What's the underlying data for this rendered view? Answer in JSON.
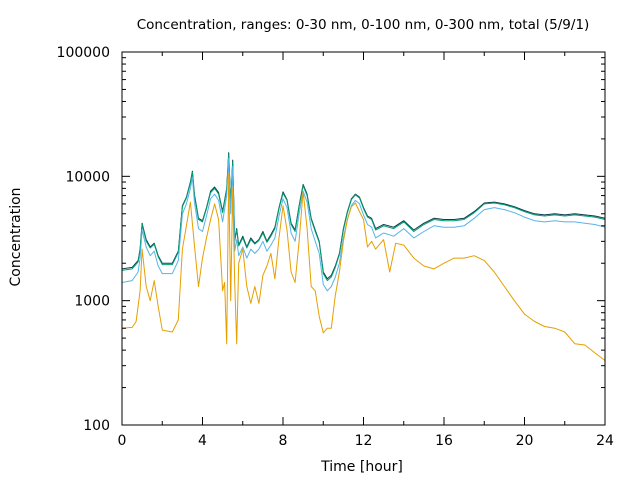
{
  "chart_data": {
    "type": "line",
    "title": "Concentration, ranges: 0-30 nm, 0-100 nm, 0-300 nm, total (5/9/1)",
    "xlabel": "Time [hour]",
    "ylabel": "Concentration",
    "xlim": [
      0,
      24
    ],
    "ylim": [
      100,
      100000
    ],
    "yscale": "log",
    "x_ticks": [
      "0",
      "4",
      "8",
      "12",
      "16",
      "20",
      "24"
    ],
    "y_ticks": [
      "100",
      "1000",
      "10000",
      "100000"
    ],
    "grid": false,
    "legend": "none",
    "series": [
      {
        "color": "#0b3d4a",
        "x": [
          0,
          0.5,
          0.8,
          0.9,
          1.0,
          1.2,
          1.4,
          1.6,
          1.8,
          2.0,
          2.5,
          2.8,
          3.0,
          3.2,
          3.4,
          3.5,
          3.6,
          3.8,
          4.0,
          4.2,
          4.4,
          4.6,
          4.8,
          5.0,
          5.2,
          5.3,
          5.4,
          5.5,
          5.6,
          5.7,
          5.8,
          6.0,
          6.2,
          6.4,
          6.6,
          6.8,
          7.0,
          7.2,
          7.4,
          7.6,
          7.8,
          8.0,
          8.2,
          8.4,
          8.6,
          8.8,
          9.0,
          9.2,
          9.4,
          9.6,
          9.8,
          10.0,
          10.2,
          10.4,
          10.6,
          10.8,
          11.0,
          11.2,
          11.4,
          11.6,
          11.8,
          12.0,
          12.2,
          12.4,
          12.6,
          13.0,
          13.5,
          14.0,
          14.5,
          15.0,
          15.5,
          16.0,
          16.5,
          17.0,
          17.5,
          18.0,
          18.5,
          19.0,
          19.5,
          20.0,
          20.5,
          21.0,
          21.5,
          22.0,
          22.5,
          23.0,
          23.5,
          24.0
        ],
        "y": [
          1800,
          1850,
          2100,
          2600,
          4200,
          3100,
          2700,
          2900,
          2300,
          2000,
          2000,
          2500,
          5800,
          6800,
          9000,
          11000,
          7200,
          4600,
          4400,
          5600,
          7600,
          8200,
          7400,
          5200,
          8000,
          15500,
          6000,
          13500,
          3100,
          3800,
          2800,
          3300,
          2700,
          3200,
          2900,
          3100,
          3600,
          3000,
          3400,
          3900,
          5600,
          7500,
          6500,
          4200,
          3700,
          5800,
          8600,
          7200,
          4600,
          3700,
          3000,
          1700,
          1500,
          1600,
          1900,
          2400,
          3800,
          5200,
          6600,
          7200,
          6800,
          5600,
          4800,
          4600,
          3800,
          4100,
          3900,
          4400,
          3700,
          4200,
          4600,
          4500,
          4500,
          4600,
          5200,
          6100,
          6200,
          6000,
          5700,
          5300,
          5000,
          4900,
          5000,
          4900,
          5000,
          4900,
          4800,
          4600
        ]
      },
      {
        "color": "#009e73",
        "x": [
          0,
          0.5,
          0.8,
          0.9,
          1.0,
          1.2,
          1.4,
          1.6,
          1.8,
          2.0,
          2.5,
          2.8,
          3.0,
          3.2,
          3.4,
          3.5,
          3.6,
          3.8,
          4.0,
          4.2,
          4.4,
          4.6,
          4.8,
          5.0,
          5.2,
          5.3,
          5.4,
          5.5,
          5.6,
          5.7,
          5.8,
          6.0,
          6.2,
          6.4,
          6.6,
          6.8,
          7.0,
          7.2,
          7.4,
          7.6,
          7.8,
          8.0,
          8.2,
          8.4,
          8.6,
          8.8,
          9.0,
          9.2,
          9.4,
          9.6,
          9.8,
          10.0,
          10.2,
          10.4,
          10.6,
          10.8,
          11.0,
          11.2,
          11.4,
          11.6,
          11.8,
          12.0,
          12.2,
          12.4,
          12.6,
          13.0,
          13.5,
          14.0,
          14.5,
          15.0,
          15.5,
          16.0,
          16.5,
          17.0,
          17.5,
          18.0,
          18.5,
          19.0,
          19.5,
          20.0,
          20.5,
          21.0,
          21.5,
          22.0,
          22.5,
          23.0,
          23.5,
          24.0
        ],
        "y": [
          1750,
          1800,
          2050,
          2550,
          4100,
          3000,
          2650,
          2850,
          2250,
          1950,
          1950,
          2450,
          5700,
          6700,
          8800,
          10800,
          7000,
          4500,
          4300,
          5500,
          7400,
          8000,
          7200,
          5100,
          7800,
          15000,
          5900,
          13000,
          3000,
          3700,
          2750,
          3200,
          2650,
          3100,
          2850,
          3050,
          3500,
          2950,
          3300,
          3800,
          5500,
          7300,
          6400,
          4100,
          3600,
          5700,
          8400,
          7000,
          4500,
          3600,
          2950,
          1650,
          1450,
          1550,
          1850,
          2350,
          3700,
          5100,
          6500,
          7100,
          6700,
          5500,
          4700,
          4500,
          3700,
          4000,
          3800,
          4300,
          3600,
          4100,
          4500,
          4400,
          4400,
          4500,
          5100,
          6000,
          6100,
          5900,
          5600,
          5200,
          4900,
          4800,
          4900,
          4800,
          4900,
          4800,
          4700,
          4500
        ]
      },
      {
        "color": "#56b4e9",
        "x": [
          0,
          0.5,
          0.8,
          0.9,
          1.0,
          1.2,
          1.4,
          1.6,
          1.8,
          2.0,
          2.5,
          2.8,
          3.0,
          3.2,
          3.4,
          3.5,
          3.6,
          3.8,
          4.0,
          4.2,
          4.4,
          4.6,
          4.8,
          5.0,
          5.2,
          5.3,
          5.4,
          5.5,
          5.6,
          5.7,
          5.8,
          6.0,
          6.2,
          6.4,
          6.6,
          6.8,
          7.0,
          7.2,
          7.4,
          7.6,
          7.8,
          8.0,
          8.2,
          8.4,
          8.6,
          8.8,
          9.0,
          9.2,
          9.4,
          9.6,
          9.8,
          10.0,
          10.2,
          10.4,
          10.6,
          10.8,
          11.0,
          11.2,
          11.4,
          11.6,
          11.8,
          12.0,
          12.2,
          12.4,
          12.6,
          13.0,
          13.5,
          14.0,
          14.5,
          15.0,
          15.5,
          16.0,
          16.5,
          17.0,
          17.5,
          18.0,
          18.5,
          19.0,
          19.5,
          20.0,
          20.5,
          21.0,
          21.5,
          22.0,
          22.5,
          23.0,
          23.5,
          24.0
        ],
        "y": [
          1400,
          1450,
          1700,
          2200,
          3700,
          2700,
          2300,
          2500,
          1900,
          1650,
          1650,
          2100,
          5000,
          6000,
          8000,
          9800,
          6200,
          3800,
          3600,
          4800,
          6600,
          7200,
          6400,
          4300,
          7000,
          14000,
          5000,
          12000,
          2500,
          3100,
          2300,
          2700,
          2200,
          2600,
          2400,
          2600,
          3000,
          2500,
          2800,
          3200,
          4800,
          6600,
          5600,
          3500,
          3000,
          5000,
          7600,
          6200,
          3800,
          3000,
          2400,
          1350,
          1200,
          1300,
          1550,
          2000,
          3200,
          4500,
          5800,
          6400,
          6000,
          4900,
          4100,
          3900,
          3200,
          3500,
          3300,
          3800,
          3200,
          3600,
          4000,
          3900,
          3900,
          4000,
          4600,
          5400,
          5600,
          5400,
          5100,
          4700,
          4400,
          4300,
          4400,
          4300,
          4300,
          4200,
          4100,
          3900
        ]
      },
      {
        "color": "#e69f00",
        "x": [
          0,
          0.5,
          0.7,
          0.9,
          1.0,
          1.2,
          1.4,
          1.6,
          1.8,
          2.0,
          2.5,
          2.8,
          3.0,
          3.2,
          3.4,
          3.6,
          3.8,
          4.0,
          4.2,
          4.4,
          4.6,
          4.8,
          5.0,
          5.1,
          5.2,
          5.3,
          5.4,
          5.5,
          5.6,
          5.7,
          5.8,
          6.0,
          6.2,
          6.4,
          6.6,
          6.8,
          7.0,
          7.2,
          7.4,
          7.6,
          7.8,
          8.0,
          8.2,
          8.4,
          8.6,
          8.8,
          9.0,
          9.2,
          9.4,
          9.6,
          9.8,
          10.0,
          10.2,
          10.4,
          10.6,
          10.8,
          11.0,
          11.2,
          11.4,
          11.6,
          11.8,
          12.0,
          12.2,
          12.4,
          12.6,
          13.0,
          13.3,
          13.6,
          14.0,
          14.5,
          15.0,
          15.5,
          16.0,
          16.5,
          17.0,
          17.5,
          18.0,
          18.5,
          19.0,
          19.5,
          20.0,
          20.5,
          21.0,
          21.5,
          22.0,
          22.5,
          23.0,
          23.5,
          24.0
        ],
        "y": [
          600,
          610,
          680,
          1200,
          2600,
          1300,
          1000,
          1450,
          900,
          580,
          560,
          700,
          2600,
          4000,
          6200,
          2800,
          1300,
          2200,
          3200,
          4500,
          6000,
          4500,
          1200,
          1400,
          450,
          10500,
          1000,
          8000,
          1400,
          450,
          2000,
          2600,
          1300,
          950,
          1300,
          950,
          1600,
          1900,
          2400,
          1500,
          3200,
          5800,
          3700,
          1700,
          1400,
          3000,
          7600,
          3800,
          1300,
          1200,
          750,
          550,
          600,
          600,
          1100,
          1700,
          3000,
          4500,
          5700,
          6100,
          5200,
          4500,
          2700,
          3000,
          2600,
          3100,
          1700,
          2900,
          2800,
          2200,
          1900,
          1800,
          2000,
          2200,
          2200,
          2300,
          2100,
          1700,
          1300,
          1000,
          780,
          680,
          620,
          600,
          560,
          450,
          440,
          380,
          330
        ]
      }
    ]
  }
}
